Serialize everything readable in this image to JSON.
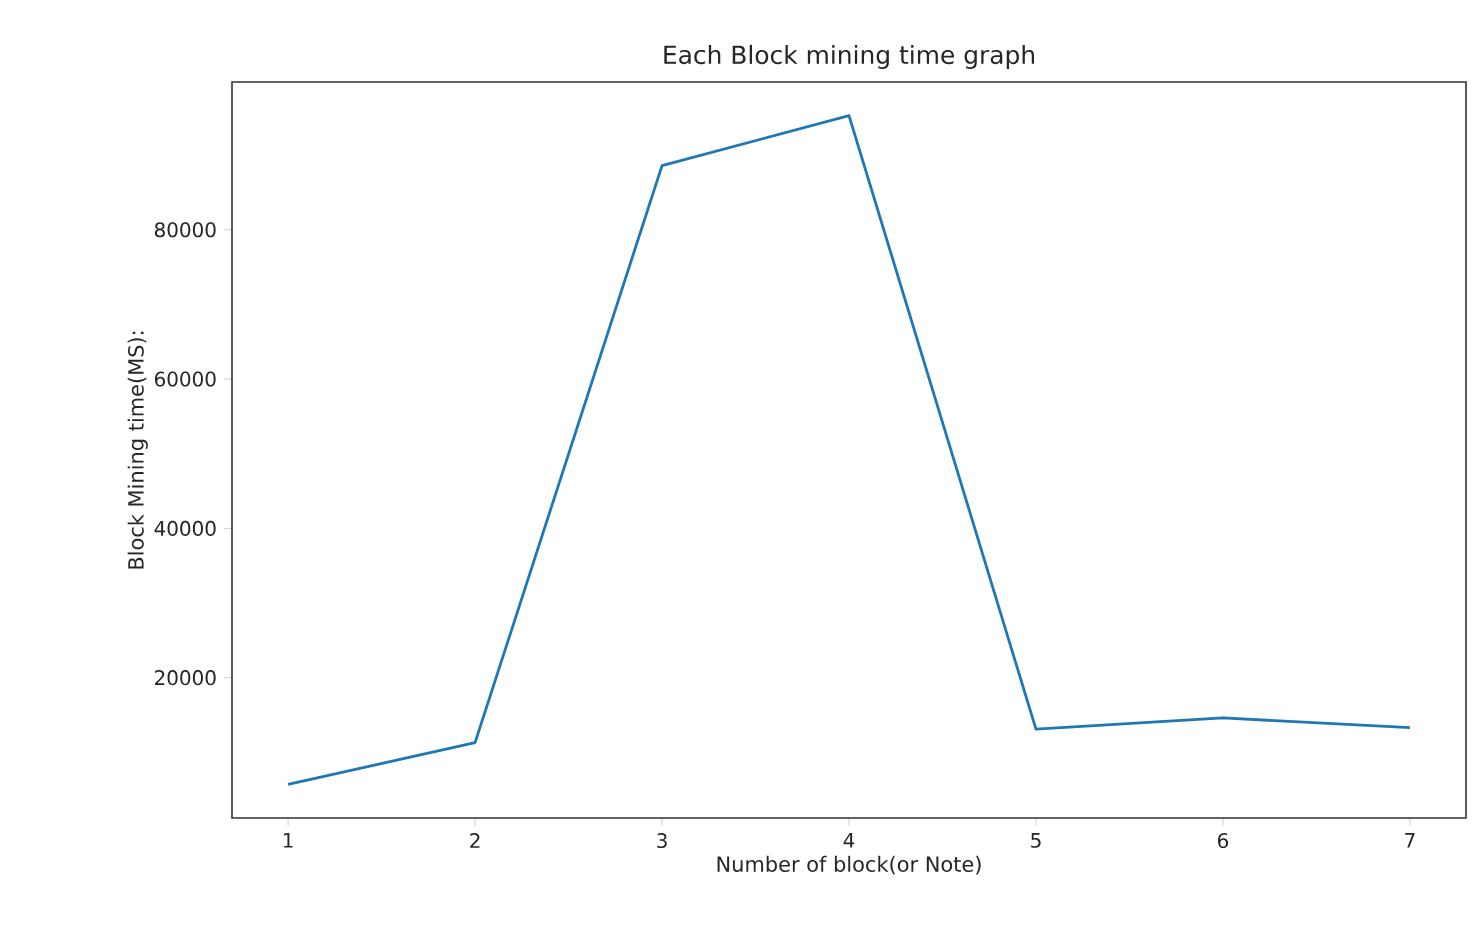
{
  "chart_data": {
    "type": "line",
    "title": "Each Block mining time graph",
    "xlabel": "Number of block(or Note)",
    "ylabel": "Block Mining time(MS):",
    "x": [
      1,
      2,
      3,
      4,
      5,
      6,
      7
    ],
    "series": [
      {
        "color": "#1f77b4",
        "values": [
          5700,
          11300,
          88600,
          95300,
          13100,
          14600,
          13300
        ]
      }
    ],
    "xlim": [
      0.7,
      7.3
    ],
    "ylim": [
      1200,
      99800
    ],
    "xticks": [
      1,
      2,
      3,
      4,
      5,
      6,
      7
    ],
    "yticks": [
      20000,
      40000,
      60000,
      80000
    ],
    "grid": false
  }
}
